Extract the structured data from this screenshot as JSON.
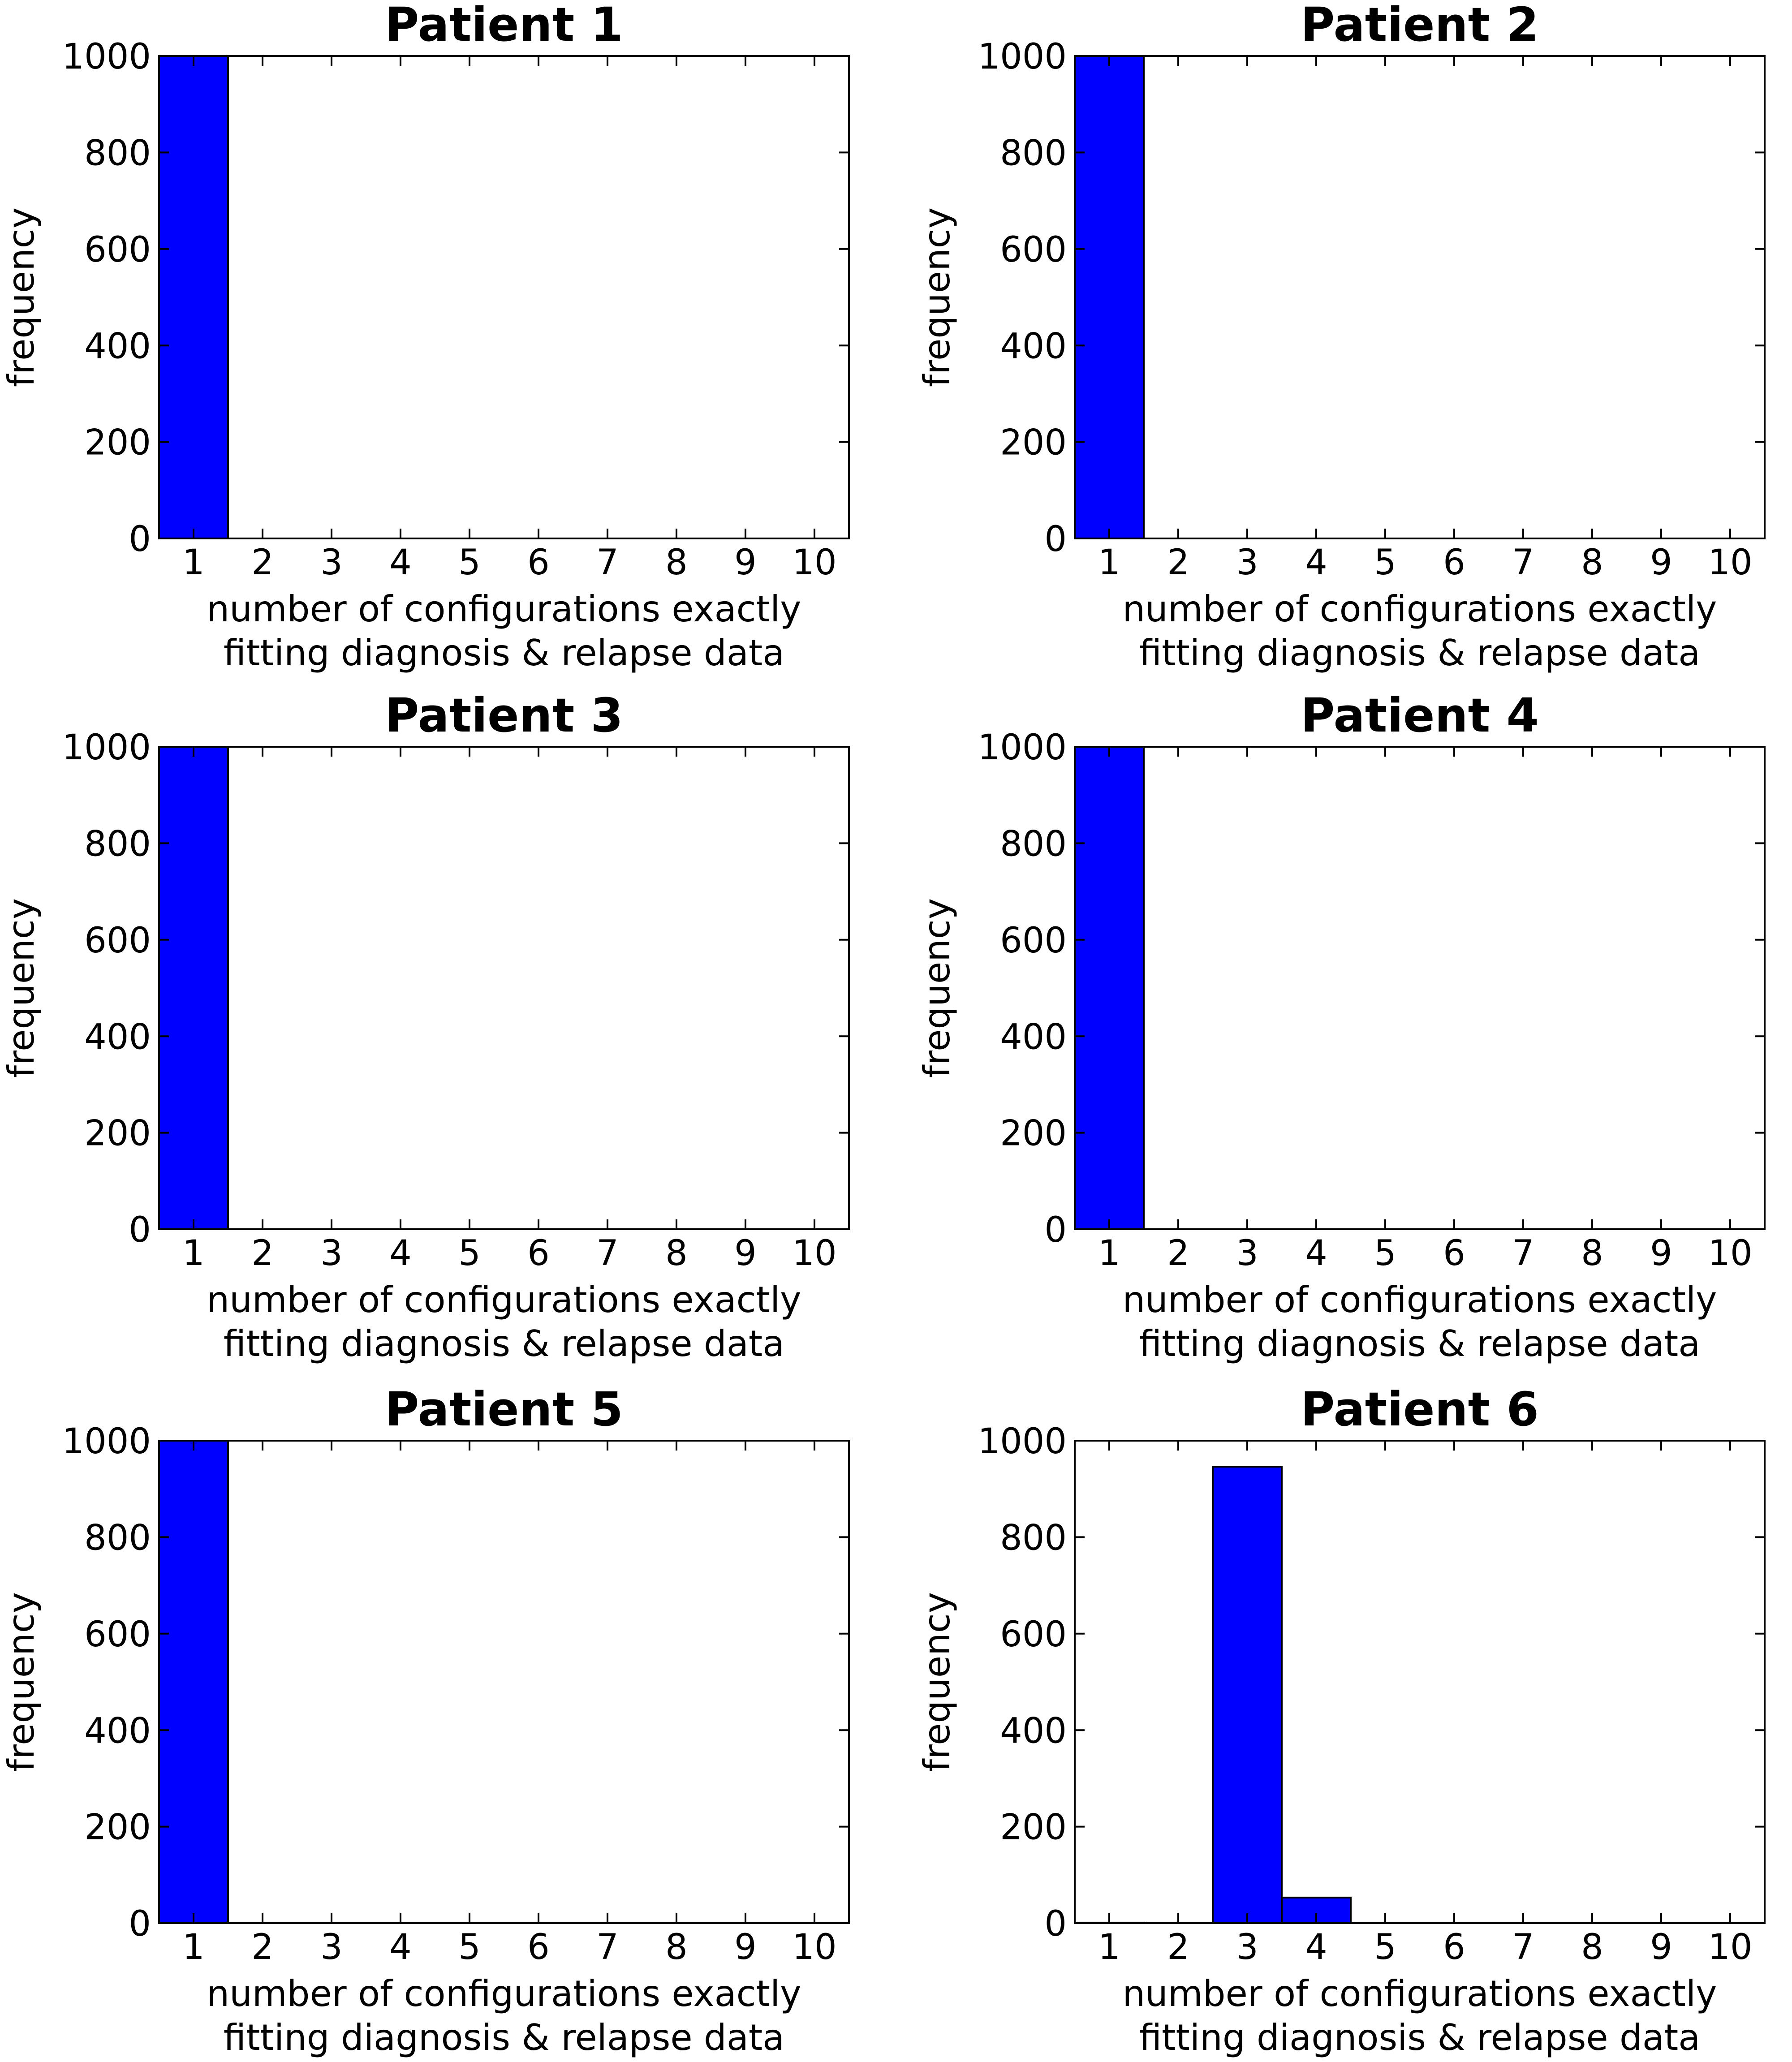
{
  "figure": {
    "bar_color": "#0000ff",
    "bar_edge_color": "#000000",
    "axis_color": "#000000",
    "background": "#ffffff"
  },
  "chart_data": [
    {
      "type": "bar",
      "title": "Patient 1",
      "xlabel": "number of configurations exactly\nfitting diagnosis & relapse data",
      "ylabel": "frequency",
      "categories": [
        "1",
        "2",
        "3",
        "4",
        "5",
        "6",
        "7",
        "8",
        "9",
        "10"
      ],
      "values": [
        1000,
        0,
        0,
        0,
        0,
        0,
        0,
        0,
        0,
        0
      ],
      "xticks": [
        "1",
        "2",
        "3",
        "4",
        "5",
        "6",
        "7",
        "8",
        "9",
        "10"
      ],
      "yticks": [
        "0",
        "200",
        "400",
        "600",
        "800",
        "1000"
      ],
      "xlim": [
        0.5,
        10.5
      ],
      "ylim": [
        0,
        1000
      ],
      "grid": false,
      "legend": null
    },
    {
      "type": "bar",
      "title": "Patient 2",
      "xlabel": "number of configurations exactly\nfitting diagnosis & relapse data",
      "ylabel": "frequency",
      "categories": [
        "1",
        "2",
        "3",
        "4",
        "5",
        "6",
        "7",
        "8",
        "9",
        "10"
      ],
      "values": [
        1000,
        0,
        0,
        0,
        0,
        0,
        0,
        0,
        0,
        0
      ],
      "xticks": [
        "1",
        "2",
        "3",
        "4",
        "5",
        "6",
        "7",
        "8",
        "9",
        "10"
      ],
      "yticks": [
        "0",
        "200",
        "400",
        "600",
        "800",
        "1000"
      ],
      "xlim": [
        0.5,
        10.5
      ],
      "ylim": [
        0,
        1000
      ],
      "grid": false,
      "legend": null
    },
    {
      "type": "bar",
      "title": "Patient 3",
      "xlabel": "number of configurations exactly\nfitting diagnosis & relapse data",
      "ylabel": "frequency",
      "categories": [
        "1",
        "2",
        "3",
        "4",
        "5",
        "6",
        "7",
        "8",
        "9",
        "10"
      ],
      "values": [
        1000,
        0,
        0,
        0,
        0,
        0,
        0,
        0,
        0,
        0
      ],
      "xticks": [
        "1",
        "2",
        "3",
        "4",
        "5",
        "6",
        "7",
        "8",
        "9",
        "10"
      ],
      "yticks": [
        "0",
        "200",
        "400",
        "600",
        "800",
        "1000"
      ],
      "xlim": [
        0.5,
        10.5
      ],
      "ylim": [
        0,
        1000
      ],
      "grid": false,
      "legend": null
    },
    {
      "type": "bar",
      "title": "Patient 4",
      "xlabel": "number of configurations exactly\nfitting diagnosis & relapse data",
      "ylabel": "frequency",
      "categories": [
        "1",
        "2",
        "3",
        "4",
        "5",
        "6",
        "7",
        "8",
        "9",
        "10"
      ],
      "values": [
        1000,
        0,
        0,
        0,
        0,
        0,
        0,
        0,
        0,
        0
      ],
      "xticks": [
        "1",
        "2",
        "3",
        "4",
        "5",
        "6",
        "7",
        "8",
        "9",
        "10"
      ],
      "yticks": [
        "0",
        "200",
        "400",
        "600",
        "800",
        "1000"
      ],
      "xlim": [
        0.5,
        10.5
      ],
      "ylim": [
        0,
        1000
      ],
      "grid": false,
      "legend": null
    },
    {
      "type": "bar",
      "title": "Patient 5",
      "xlabel": "number of configurations exactly\nfitting diagnosis & relapse data",
      "ylabel": "frequency",
      "categories": [
        "1",
        "2",
        "3",
        "4",
        "5",
        "6",
        "7",
        "8",
        "9",
        "10"
      ],
      "values": [
        1000,
        0,
        0,
        0,
        0,
        0,
        0,
        0,
        0,
        0
      ],
      "xticks": [
        "1",
        "2",
        "3",
        "4",
        "5",
        "6",
        "7",
        "8",
        "9",
        "10"
      ],
      "yticks": [
        "0",
        "200",
        "400",
        "600",
        "800",
        "1000"
      ],
      "xlim": [
        0.5,
        10.5
      ],
      "ylim": [
        0,
        1000
      ],
      "grid": false,
      "legend": null
    },
    {
      "type": "bar",
      "title": "Patient 6",
      "xlabel": "number of configurations exactly\nfitting diagnosis & relapse data",
      "ylabel": "frequency",
      "categories": [
        "1",
        "2",
        "3",
        "4",
        "5",
        "6",
        "7",
        "8",
        "9",
        "10"
      ],
      "values": [
        1,
        0,
        946,
        53,
        0,
        0,
        0,
        0,
        0,
        0
      ],
      "xticks": [
        "1",
        "2",
        "3",
        "4",
        "5",
        "6",
        "7",
        "8",
        "9",
        "10"
      ],
      "yticks": [
        "0",
        "200",
        "400",
        "600",
        "800",
        "1000"
      ],
      "xlim": [
        0.5,
        10.5
      ],
      "ylim": [
        0,
        1000
      ],
      "grid": false,
      "legend": null
    }
  ]
}
